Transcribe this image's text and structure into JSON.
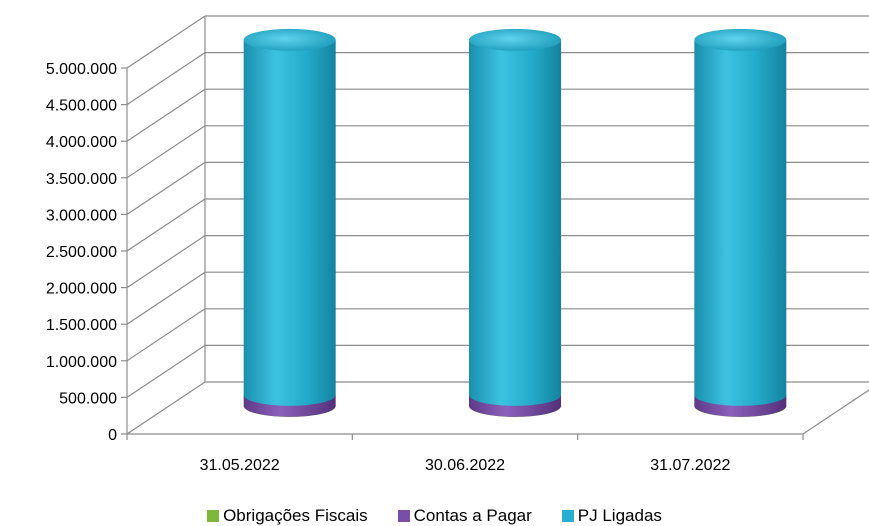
{
  "chart_data": {
    "type": "bar",
    "style": "3d-cylinder-stacked",
    "categories": [
      "31.05.2022",
      "30.06.2022",
      "31.07.2022"
    ],
    "series": [
      {
        "name": "Obrigações Fiscais",
        "color": "#7fb73a",
        "values": [
          2000,
          2000,
          2000
        ]
      },
      {
        "name": "Contas a Pagar",
        "color": "#7a4ea6",
        "values": [
          150000,
          150000,
          150000
        ]
      },
      {
        "name": "PJ Ligadas",
        "color": "#27b0cf",
        "values": [
          4850000,
          4850000,
          4850000
        ]
      }
    ],
    "y_ticks": [
      "0",
      "500.000",
      "1.000.000",
      "1.500.000",
      "2.000.000",
      "2.500.000",
      "3.000.000",
      "3.500.000",
      "4.000.000",
      "4.500.000",
      "5.000.000"
    ],
    "ylim": [
      0,
      5000000
    ],
    "grid": true,
    "legend_position": "bottom"
  }
}
